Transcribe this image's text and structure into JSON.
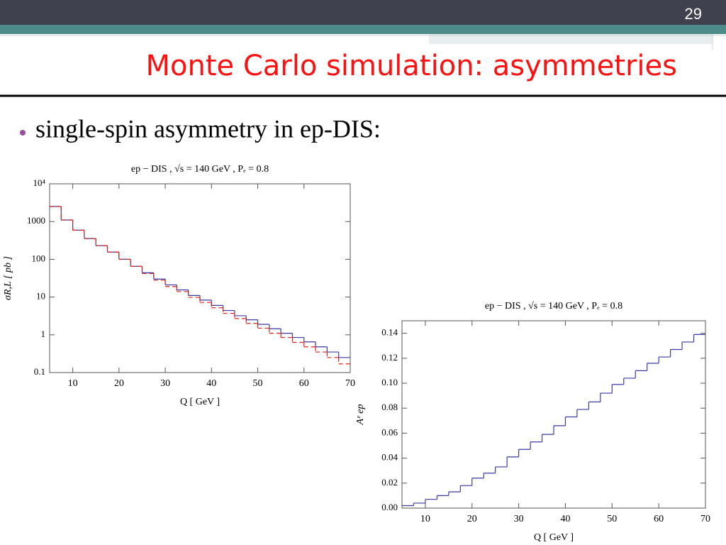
{
  "slide_number": "29",
  "title": "Monte Carlo simulation: asymmetries",
  "bullet": "single-spin asymmetry in ep-DIS:",
  "chart_data": [
    {
      "type": "histogram",
      "title": "ep − DIS ,  √s  = 140  GeV ,  Pₑ = 0.8",
      "x_label": "Q  [ GeV ]",
      "y_label": "σR,L  [ pb ]",
      "bins": [
        5,
        7.5,
        10,
        12.5,
        15,
        17.5,
        20,
        22.5,
        25,
        27.5,
        30,
        32.5,
        35,
        37.5,
        40,
        42.5,
        45,
        47.5,
        50,
        52.5,
        55,
        57.5,
        60,
        62.5,
        65,
        67.5,
        70
      ],
      "series": [
        {
          "color": "#3a3aa8",
          "style": "solid",
          "values": [
            2500,
            1100,
            590,
            355,
            230,
            155,
            100,
            65,
            44,
            30,
            21,
            15.5,
            11,
            8.3,
            6,
            4.4,
            3.2,
            2.5,
            1.9,
            1.45,
            1.1,
            0.85,
            0.65,
            0.48,
            0.35,
            0.25
          ]
        },
        {
          "color": "#e0201a",
          "style": "dashed",
          "values": [
            2500,
            1100,
            590,
            355,
            230,
            155,
            100,
            65,
            42,
            28,
            19,
            14,
            9.8,
            7.2,
            5.2,
            3.7,
            2.7,
            2,
            1.5,
            1.1,
            0.85,
            0.63,
            0.48,
            0.35,
            0.25,
            0.17
          ]
        }
      ],
      "xlim": [
        5,
        70
      ],
      "xticks": [
        10,
        20,
        30,
        40,
        50,
        60,
        70
      ],
      "ylim": [
        0.1,
        10000
      ],
      "log_y": true,
      "yticks": [
        0.1,
        1,
        10,
        100,
        1000,
        {
          "value": 10000,
          "label": "10⁴"
        }
      ]
    },
    {
      "type": "histogram",
      "title": "ep − DIS ,  √s  = 140  GeV ,  Pₑ = 0.8",
      "x_label": "Q  [ GeV ]",
      "y_label": "Aᵉ ep",
      "bins": [
        5,
        7.5,
        10,
        12.5,
        15,
        17.5,
        20,
        22.5,
        25,
        27.5,
        30,
        32.5,
        35,
        37.5,
        40,
        42.5,
        45,
        47.5,
        50,
        52.5,
        55,
        57.5,
        60,
        62.5,
        65,
        67.5,
        70
      ],
      "series": [
        {
          "color": "#3a3aa8",
          "style": "solid",
          "values": [
            0.002,
            0.004,
            0.007,
            0.01,
            0.013,
            0.018,
            0.024,
            0.028,
            0.033,
            0.041,
            0.047,
            0.053,
            0.059,
            0.066,
            0.073,
            0.079,
            0.085,
            0.092,
            0.099,
            0.104,
            0.11,
            0.116,
            0.121,
            0.127,
            0.133,
            0.139
          ]
        }
      ],
      "xlim": [
        5,
        70
      ],
      "xticks": [
        10,
        20,
        30,
        40,
        50,
        60,
        70
      ],
      "ylim": [
        0,
        0.15
      ],
      "log_y": false,
      "yticks": [
        {
          "value": 0,
          "label": "0.00"
        },
        {
          "value": 0.02,
          "label": "0.02"
        },
        {
          "value": 0.04,
          "label": "0.04"
        },
        {
          "value": 0.06,
          "label": "0.06"
        },
        {
          "value": 0.08,
          "label": "0.08"
        },
        {
          "value": 0.1,
          "label": "0.10"
        },
        {
          "value": 0.12,
          "label": "0.12"
        },
        {
          "value": 0.14,
          "label": "0.14"
        }
      ]
    }
  ]
}
